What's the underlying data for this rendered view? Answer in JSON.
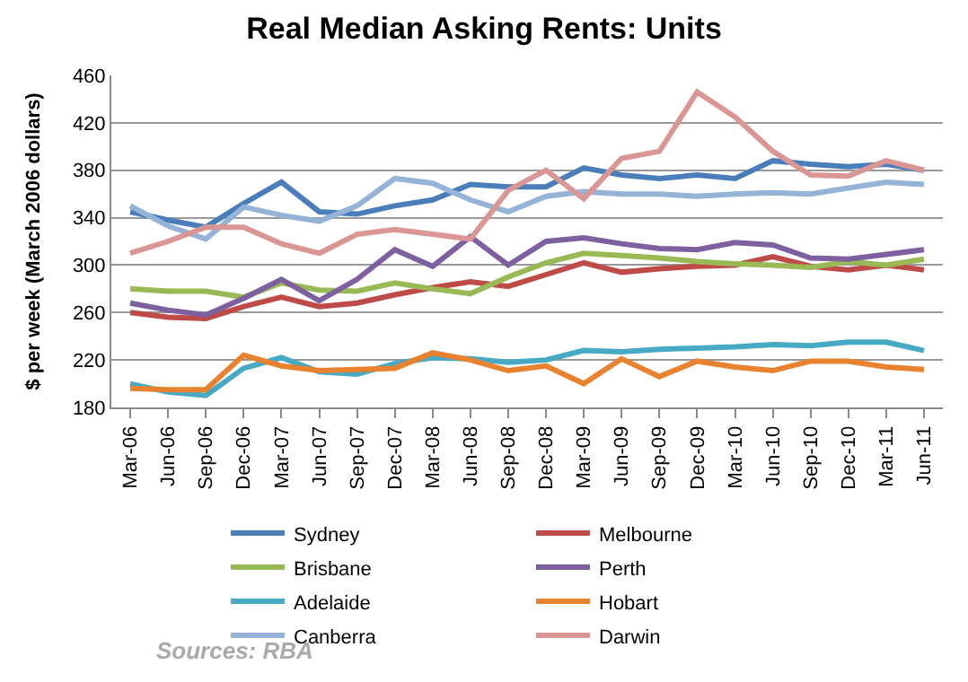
{
  "chart_data": {
    "type": "line",
    "title": "Real Median Asking Rents: Units",
    "ylabel": "$ per week (March 2006 dollars)",
    "categories": [
      "Mar-06",
      "Jun-06",
      "Sep-06",
      "Dec-06",
      "Mar-07",
      "Jun-07",
      "Sep-07",
      "Dec-07",
      "Mar-08",
      "Jun-08",
      "Sep-08",
      "Dec-08",
      "Mar-09",
      "Jun-09",
      "Sep-09",
      "Dec-09",
      "Mar-10",
      "Jun-10",
      "Sep-10",
      "Dec-10",
      "Mar-11",
      "Jun-11"
    ],
    "series": [
      {
        "name": "Sydney",
        "color": "#4a7ebb",
        "values": [
          345,
          338,
          332,
          352,
          370,
          345,
          343,
          350,
          355,
          368,
          366,
          366,
          382,
          376,
          373,
          376,
          373,
          388,
          385,
          383,
          385,
          380
        ]
      },
      {
        "name": "Melbourne",
        "color": "#be4b48",
        "values": [
          260,
          256,
          255,
          265,
          273,
          265,
          268,
          275,
          281,
          286,
          282,
          292,
          302,
          294,
          297,
          299,
          300,
          307,
          299,
          296,
          300,
          296
        ]
      },
      {
        "name": "Brisbane",
        "color": "#98b954",
        "values": [
          280,
          278,
          278,
          273,
          285,
          279,
          278,
          285,
          280,
          276,
          290,
          302,
          310,
          308,
          306,
          303,
          301,
          300,
          298,
          303,
          300,
          305
        ]
      },
      {
        "name": "Perth",
        "color": "#7d60a0",
        "values": [
          268,
          262,
          258,
          272,
          288,
          270,
          288,
          313,
          299,
          324,
          300,
          320,
          323,
          318,
          314,
          313,
          319,
          317,
          306,
          305,
          309,
          313
        ]
      },
      {
        "name": "Adelaide",
        "color": "#46aac5",
        "values": [
          200,
          193,
          190,
          213,
          222,
          210,
          208,
          217,
          222,
          221,
          218,
          220,
          228,
          227,
          229,
          230,
          231,
          233,
          232,
          235,
          235,
          228
        ]
      },
      {
        "name": "Hobart",
        "color": "#e8822e",
        "values": [
          196,
          195,
          195,
          224,
          215,
          211,
          212,
          213,
          226,
          220,
          211,
          215,
          200,
          221,
          206,
          219,
          214,
          211,
          219,
          219,
          214,
          212
        ]
      },
      {
        "name": "Canberra",
        "color": "#95b3d7",
        "values": [
          350,
          333,
          322,
          349,
          342,
          337,
          350,
          373,
          369,
          355,
          345,
          358,
          362,
          360,
          360,
          358,
          360,
          361,
          360,
          365,
          370,
          368
        ]
      },
      {
        "name": "Darwin",
        "color": "#d99694",
        "values": [
          310,
          320,
          332,
          332,
          318,
          310,
          326,
          330,
          326,
          322,
          363,
          380,
          356,
          390,
          396,
          446,
          425,
          396,
          376,
          375,
          388,
          380
        ]
      }
    ],
    "ylim": [
      180,
      460
    ],
    "yticks": [
      180,
      220,
      260,
      300,
      340,
      380,
      420,
      460
    ],
    "grid": "y",
    "legend": "bottom",
    "marker": "none",
    "line_style": "solid",
    "annotations": [
      "Sources: RBA"
    ]
  }
}
